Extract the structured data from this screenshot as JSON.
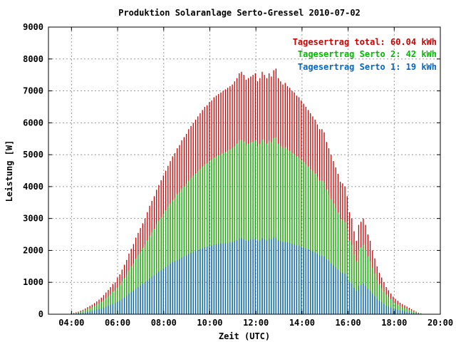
{
  "chart_data": {
    "type": "bar",
    "title": "Produktion Solaranlage Serto-Gressel 2010-07-02",
    "xlabel": "Zeit (UTC)",
    "ylabel": "Leistung [W]",
    "xlim": [
      3.0,
      20.0
    ],
    "ylim": [
      0,
      9000
    ],
    "x_ticks": [
      "04:00",
      "06:00",
      "08:00",
      "10:00",
      "12:00",
      "14:00",
      "16:00",
      "18:00",
      "20:00"
    ],
    "x_tick_values": [
      4,
      6,
      8,
      10,
      12,
      14,
      16,
      18,
      20
    ],
    "y_ticks": [
      "0",
      "1000",
      "2000",
      "3000",
      "4000",
      "5000",
      "6000",
      "7000",
      "8000",
      "9000"
    ],
    "y_tick_values": [
      0,
      1000,
      2000,
      3000,
      4000,
      5000,
      6000,
      7000,
      8000,
      9000
    ],
    "grid": true,
    "legend_position": "top-right",
    "legend": [
      {
        "label": "Tagesertrag total: 60.04 kWh",
        "color": "#cc0000"
      },
      {
        "label": "Tagesertrag Serto 2: 42 kWh",
        "color": "#00bb00"
      },
      {
        "label": "Tagesertrag Serto 1: 19 kWh",
        "color": "#0066cc"
      }
    ],
    "interval_hours": 0.0833,
    "x_start": 4.0,
    "x_end": 19.25,
    "series": [
      {
        "name": "total",
        "color": "#cc0000",
        "values": [
          30,
          40,
          60,
          80,
          110,
          140,
          180,
          220,
          260,
          300,
          350,
          400,
          460,
          520,
          600,
          680,
          760,
          850,
          950,
          1000,
          1150,
          1250,
          1400,
          1550,
          1700,
          1900,
          2050,
          2200,
          2400,
          2550,
          2700,
          2850,
          3000,
          3200,
          3400,
          3550,
          3700,
          3900,
          4050,
          4200,
          4350,
          4500,
          4650,
          4800,
          4950,
          5050,
          5200,
          5300,
          5450,
          5550,
          5650,
          5800,
          5900,
          6000,
          6100,
          6200,
          6300,
          6400,
          6500,
          6550,
          6650,
          6700,
          6800,
          6850,
          6900,
          6950,
          7000,
          7050,
          7100,
          7150,
          7200,
          7300,
          7400,
          7550,
          7600,
          7500,
          7350,
          7400,
          7450,
          7500,
          7550,
          7300,
          7400,
          7600,
          7500,
          7400,
          7550,
          7450,
          7650,
          7700,
          7400,
          7300,
          7200,
          7250,
          7150,
          7100,
          7000,
          6950,
          6850,
          6800,
          6700,
          6600,
          6500,
          6400,
          6300,
          6200,
          6100,
          5950,
          5800,
          5800,
          5700,
          5400,
          5200,
          5000,
          4800,
          4600,
          4400,
          4150,
          4100,
          4000,
          3700,
          3200,
          3000,
          2600,
          2300,
          2800,
          2900,
          3000,
          2800,
          2500,
          2300,
          2000,
          1750,
          1500,
          1300,
          1150,
          1000,
          850,
          750,
          650,
          550,
          480,
          420,
          360,
          320,
          280,
          240,
          200,
          160,
          120,
          80,
          50,
          30,
          10
        ]
      },
      {
        "name": "Serto 2",
        "color": "#00bb00",
        "values": [
          20,
          30,
          45,
          60,
          80,
          100,
          130,
          160,
          190,
          220,
          260,
          300,
          340,
          390,
          440,
          500,
          560,
          630,
          700,
          740,
          840,
          920,
          1030,
          1130,
          1240,
          1380,
          1490,
          1600,
          1740,
          1850,
          1960,
          2070,
          2180,
          2320,
          2460,
          2570,
          2680,
          2820,
          2930,
          3040,
          3150,
          3260,
          3370,
          3470,
          3580,
          3650,
          3760,
          3830,
          3940,
          4010,
          4090,
          4190,
          4260,
          4340,
          4410,
          4480,
          4550,
          4620,
          4700,
          4730,
          4800,
          4840,
          4910,
          4950,
          4980,
          5020,
          5050,
          5090,
          5130,
          5160,
          5200,
          5270,
          5340,
          5450,
          5480,
          5410,
          5300,
          5340,
          5380,
          5410,
          5450,
          5270,
          5340,
          5480,
          5410,
          5340,
          5450,
          5380,
          5520,
          5550,
          5340,
          5270,
          5200,
          5230,
          5160,
          5120,
          5050,
          5020,
          4950,
          4910,
          4840,
          4770,
          4700,
          4620,
          4550,
          4480,
          4410,
          4300,
          4190,
          4190,
          4120,
          3900,
          3760,
          3610,
          3470,
          3330,
          3180,
          3000,
          2960,
          2890,
          2670,
          2310,
          2170,
          1880,
          1660,
          2020,
          2100,
          2170,
          2020,
          1810,
          1660,
          1450,
          1270,
          1080,
          940,
          830,
          720,
          610,
          540,
          470,
          400,
          350,
          300,
          260,
          230,
          200,
          170,
          140,
          120,
          90,
          60,
          40,
          20,
          10
        ]
      },
      {
        "name": "Serto 1",
        "color": "#0066cc",
        "values": [
          10,
          15,
          20,
          30,
          40,
          50,
          60,
          75,
          90,
          100,
          120,
          140,
          160,
          180,
          210,
          230,
          260,
          290,
          320,
          340,
          390,
          420,
          470,
          520,
          570,
          640,
          690,
          740,
          800,
          850,
          900,
          950,
          1000,
          1060,
          1120,
          1170,
          1220,
          1280,
          1330,
          1380,
          1430,
          1480,
          1530,
          1580,
          1630,
          1660,
          1700,
          1730,
          1780,
          1810,
          1840,
          1890,
          1920,
          1950,
          1980,
          2010,
          2040,
          2070,
          2100,
          2110,
          2140,
          2150,
          2180,
          2190,
          2200,
          2210,
          2220,
          2230,
          2240,
          2250,
          2260,
          2290,
          2320,
          2370,
          2380,
          2350,
          2300,
          2320,
          2340,
          2350,
          2370,
          2290,
          2320,
          2380,
          2350,
          2320,
          2370,
          2340,
          2400,
          2410,
          2320,
          2290,
          2260,
          2270,
          2250,
          2230,
          2200,
          2190,
          2160,
          2150,
          2120,
          2090,
          2060,
          2030,
          2000,
          1970,
          1940,
          1890,
          1840,
          1840,
          1810,
          1720,
          1660,
          1590,
          1530,
          1470,
          1400,
          1320,
          1300,
          1270,
          1180,
          1020,
          960,
          830,
          730,
          890,
          920,
          960,
          890,
          800,
          730,
          640,
          560,
          480,
          420,
          370,
          320,
          270,
          240,
          210,
          180,
          160,
          140,
          120,
          110,
          90,
          80,
          60,
          50,
          40,
          30,
          20,
          10,
          5
        ]
      }
    ]
  }
}
